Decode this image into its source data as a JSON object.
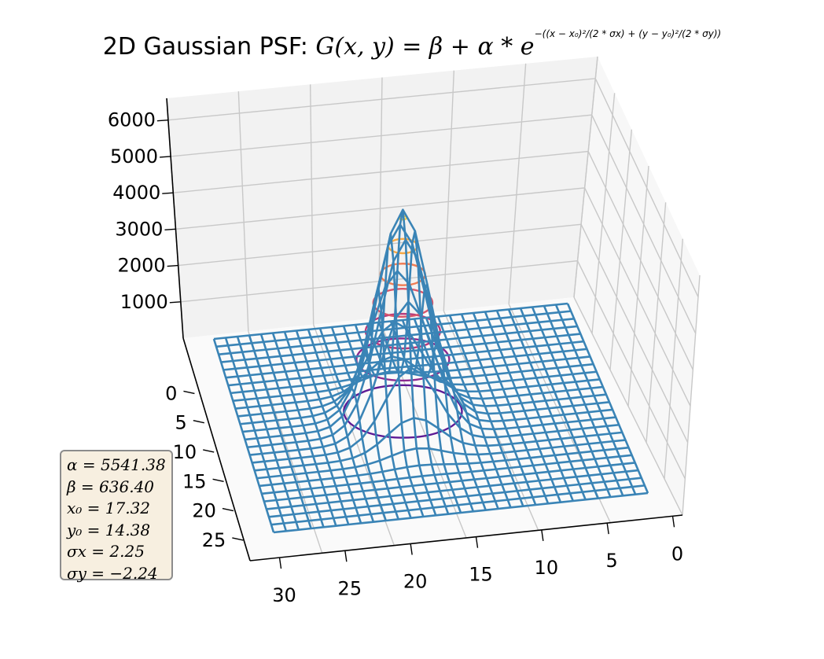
{
  "title": {
    "prefix": "2D Gaussian PSF: ",
    "lhs": "G(x, y) = β + α * e",
    "exponent": "−((x − x₀)²/(2 * σx) + (y − y₀)²/(2 * σy))"
  },
  "params": [
    "α = 5541.38",
    "β = 636.40",
    "x₀ = 17.32",
    "y₀ = 14.38",
    "σx = 2.25",
    "σy = −2.24"
  ],
  "chart_data": {
    "type": "surface",
    "subtype": "3d-wireframe-with-contours",
    "function": "G(x, y) = beta + alpha * exp(-((x - x0)^2/(2*sigma_x) + (y - y0)^2/(2*sigma_y)))",
    "params": {
      "alpha": 5541.38,
      "beta": 636.4,
      "x0": 17.32,
      "y0": 14.38,
      "sigma_x": 2.25,
      "sigma_y": -2.24
    },
    "grid": {
      "x_range": [
        0,
        30
      ],
      "y_range": [
        0,
        25
      ],
      "wire_step": 1
    },
    "peak": {
      "x": 17,
      "y": 13,
      "z": 6000
    },
    "z_ticks": [
      1000,
      2000,
      3000,
      4000,
      5000,
      6000
    ],
    "x_ticks": [
      30,
      25,
      20,
      15,
      10,
      5,
      0
    ],
    "y_ticks": [
      0,
      5,
      10,
      15,
      20,
      25
    ],
    "wire_color": "#3a84b6",
    "contour_colors": [
      "#5d1a95",
      "#8c2a8f",
      "#b73a7b",
      "#d8566a",
      "#ef7d55",
      "#f5a845",
      "#f5cd42"
    ]
  }
}
